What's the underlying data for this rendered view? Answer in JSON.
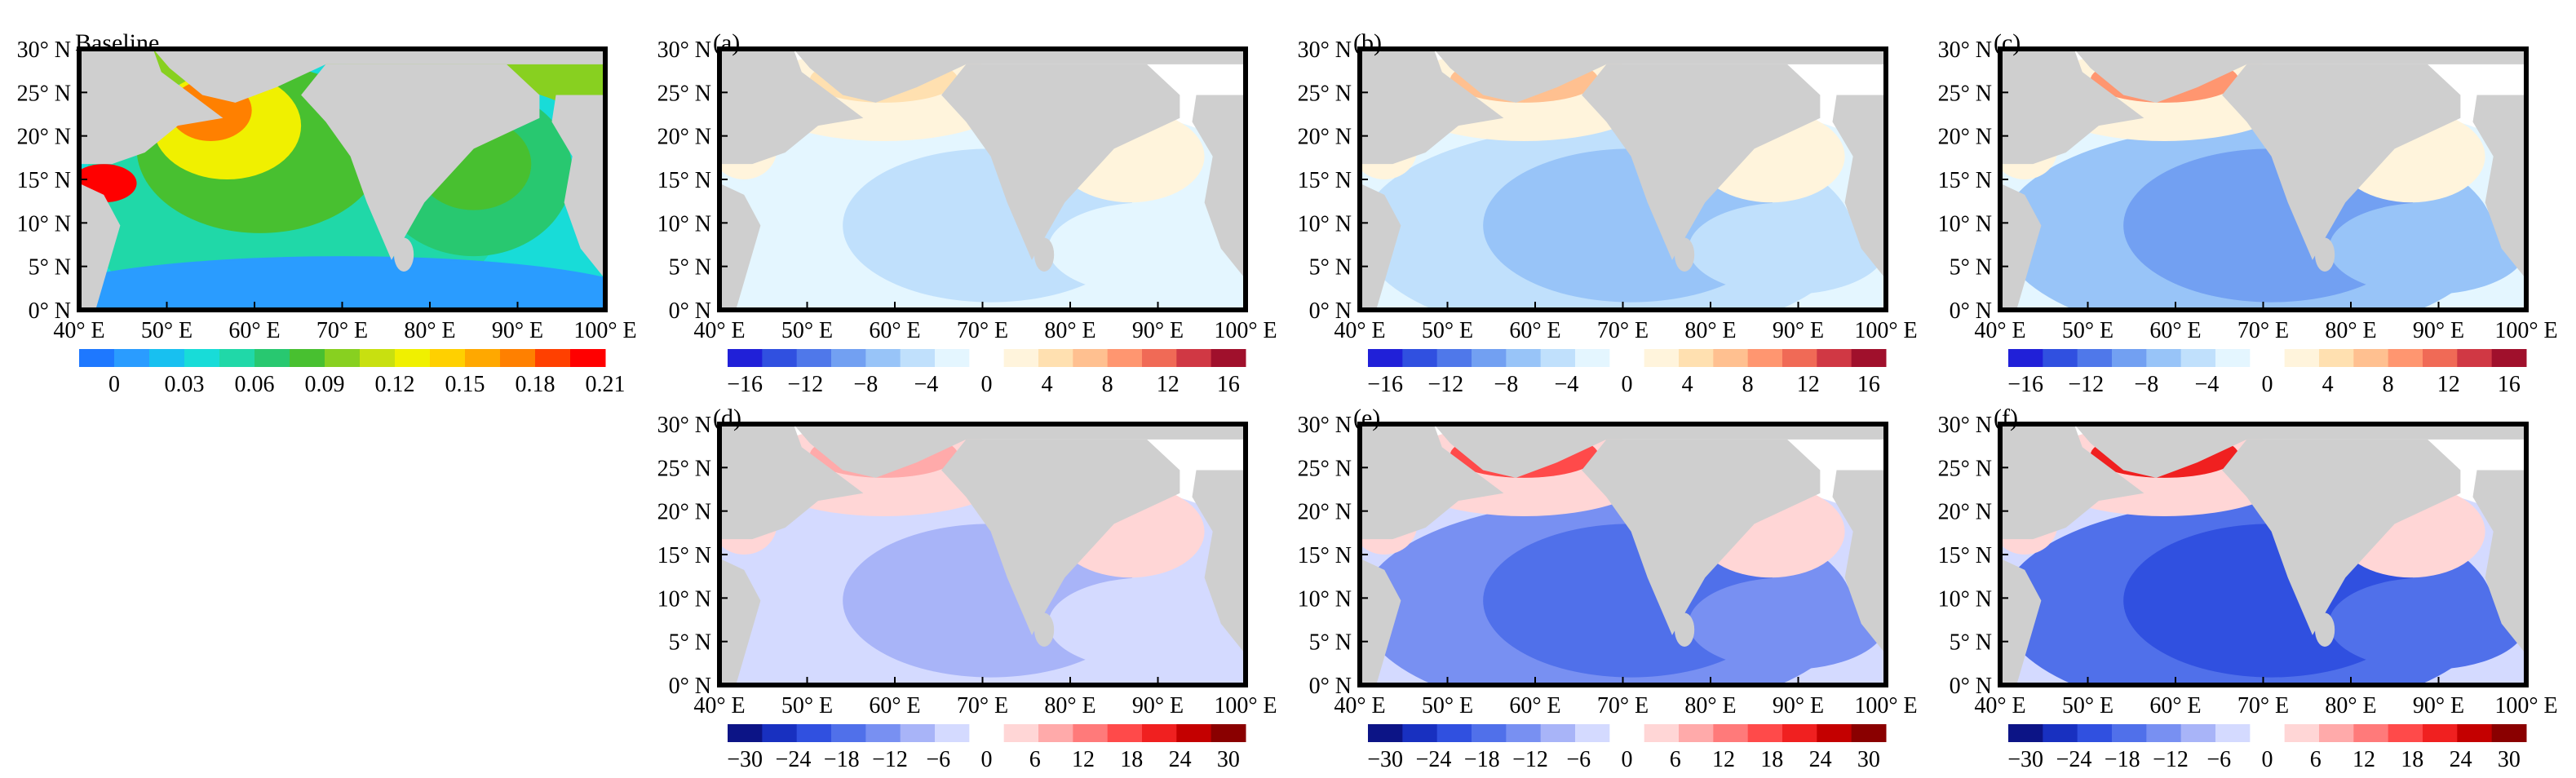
{
  "colors": {
    "land": "#cfcfcf",
    "frame": "#000000",
    "baseline_ramp": [
      "#1e78ff",
      "#2a9cff",
      "#18c0f0",
      "#18dcd8",
      "#20d8a8",
      "#28c870",
      "#48c030",
      "#88d020",
      "#c8e010",
      "#f0f000",
      "#ffd000",
      "#ffa800",
      "#ff8000",
      "#ff4000",
      "#ff0000"
    ],
    "diverging_ramp_a": [
      "#2020d8",
      "#3050e0",
      "#4f78ea",
      "#72a0f2",
      "#98c4f8",
      "#c0e0fc",
      "#e4f6ff",
      "#ffffff",
      "#fff4dc",
      "#ffe0b0",
      "#ffc090",
      "#ff9670",
      "#f06a56",
      "#d03844",
      "#a0102c"
    ],
    "diverging_ramp_d": [
      "#0c1486",
      "#1830c0",
      "#3050e0",
      "#5070ea",
      "#7890f2",
      "#a8b4f8",
      "#d4daff",
      "#ffffff",
      "#ffd6d6",
      "#ffaaaa",
      "#ff7a7a",
      "#ff4a4a",
      "#f02020",
      "#c40000",
      "#8a0000"
    ]
  },
  "panels": [
    {
      "id": "baseline",
      "label": "Baseline",
      "y_ticks": [
        "0° N",
        "5° N",
        "10° N",
        "15° N",
        "20° N",
        "25° N",
        "30° N"
      ],
      "x_ticks": [
        "40° E",
        "50° E",
        "60° E",
        "70° E",
        "80° E",
        "90° E",
        "100° E"
      ],
      "colorbar_ticks": [
        "0",
        "0.03",
        "0.06",
        "0.09",
        "0.12",
        "0.15",
        "0.18",
        "0.21"
      ],
      "ramp": "baseline_ramp"
    },
    {
      "id": "a",
      "label": "(a)",
      "y_ticks": [
        "0° N",
        "5° N",
        "10° N",
        "15° N",
        "20° N",
        "25° N",
        "30° N"
      ],
      "x_ticks": [
        "40° E",
        "50° E",
        "60° E",
        "70° E",
        "80° E",
        "90° E",
        "100° E"
      ],
      "colorbar_ticks": [
        "−16",
        "−12",
        "−8",
        "−4",
        "0",
        "4",
        "8",
        "12",
        "16"
      ],
      "ramp": "diverging_ramp_a"
    },
    {
      "id": "b",
      "label": "(b)",
      "y_ticks": [
        "0° N",
        "5° N",
        "10° N",
        "15° N",
        "20° N",
        "25° N",
        "30° N"
      ],
      "x_ticks": [
        "40° E",
        "50° E",
        "60° E",
        "70° E",
        "80° E",
        "90° E",
        "100° E"
      ],
      "colorbar_ticks": [
        "−16",
        "−12",
        "−8",
        "−4",
        "0",
        "4",
        "8",
        "12",
        "16"
      ],
      "ramp": "diverging_ramp_a"
    },
    {
      "id": "c",
      "label": "(c)",
      "y_ticks": [
        "0° N",
        "5° N",
        "10° N",
        "15° N",
        "20° N",
        "25° N",
        "30° N"
      ],
      "x_ticks": [
        "40° E",
        "50° E",
        "60° E",
        "70° E",
        "80° E",
        "90° E",
        "100° E"
      ],
      "colorbar_ticks": [
        "−16",
        "−12",
        "−8",
        "−4",
        "0",
        "4",
        "8",
        "12",
        "16"
      ],
      "ramp": "diverging_ramp_a"
    },
    {
      "id": "d",
      "label": "(d)",
      "y_ticks": [
        "0° N",
        "5° N",
        "10° N",
        "15° N",
        "20° N",
        "25° N",
        "30° N"
      ],
      "x_ticks": [
        "40° E",
        "50° E",
        "60° E",
        "70° E",
        "80° E",
        "90° E",
        "100° E"
      ],
      "colorbar_ticks": [
        "−30",
        "−24",
        "−18",
        "−12",
        "−6",
        "0",
        "6",
        "12",
        "18",
        "24",
        "30"
      ],
      "ramp": "diverging_ramp_d"
    },
    {
      "id": "e",
      "label": "(e)",
      "y_ticks": [
        "0° N",
        "5° N",
        "10° N",
        "15° N",
        "20° N",
        "25° N",
        "30° N"
      ],
      "x_ticks": [
        "40° E",
        "50° E",
        "60° E",
        "70° E",
        "80° E",
        "90° E",
        "100° E"
      ],
      "colorbar_ticks": [
        "−30",
        "−24",
        "−18",
        "−12",
        "−6",
        "0",
        "6",
        "12",
        "18",
        "24",
        "30"
      ],
      "ramp": "diverging_ramp_d"
    },
    {
      "id": "f",
      "label": "(f)",
      "y_ticks": [
        "0° N",
        "5° N",
        "10° N",
        "15° N",
        "20° N",
        "25° N",
        "30° N"
      ],
      "x_ticks": [
        "40° E",
        "50° E",
        "60° E",
        "70° E",
        "80° E",
        "90° E",
        "100° E"
      ],
      "colorbar_ticks": [
        "−30",
        "−24",
        "−18",
        "−12",
        "−6",
        "0",
        "6",
        "12",
        "18",
        "24",
        "30"
      ],
      "ramp": "diverging_ramp_d"
    }
  ],
  "chart_data": [
    {
      "type": "heatmap",
      "title": "Baseline",
      "xlim": [
        40,
        100
      ],
      "ylim": [
        0,
        30
      ],
      "colorbar_range": [
        0,
        0.21
      ]
    },
    {
      "type": "heatmap",
      "title": "(a)",
      "xlim": [
        40,
        100
      ],
      "ylim": [
        0,
        30
      ],
      "colorbar_range": [
        -16,
        16
      ]
    },
    {
      "type": "heatmap",
      "title": "(b)",
      "xlim": [
        40,
        100
      ],
      "ylim": [
        0,
        30
      ],
      "colorbar_range": [
        -16,
        16
      ]
    },
    {
      "type": "heatmap",
      "title": "(c)",
      "xlim": [
        40,
        100
      ],
      "ylim": [
        0,
        30
      ],
      "colorbar_range": [
        -16,
        16
      ]
    },
    {
      "type": "heatmap",
      "title": "(d)",
      "xlim": [
        40,
        100
      ],
      "ylim": [
        0,
        30
      ],
      "colorbar_range": [
        -30,
        30
      ]
    },
    {
      "type": "heatmap",
      "title": "(e)",
      "xlim": [
        40,
        100
      ],
      "ylim": [
        0,
        30
      ],
      "colorbar_range": [
        -30,
        30
      ]
    },
    {
      "type": "heatmap",
      "title": "(f)",
      "xlim": [
        40,
        100
      ],
      "ylim": [
        0,
        30
      ],
      "colorbar_range": [
        -30,
        30
      ]
    }
  ]
}
